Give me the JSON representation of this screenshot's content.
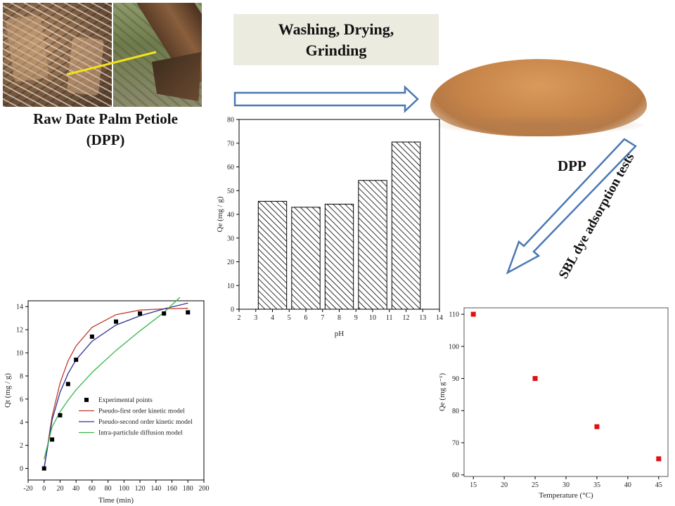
{
  "caption": {
    "line1": "Raw Date Palm Petiole",
    "line2": "(DPP)"
  },
  "process": {
    "line1": "Washing, Drying,",
    "line2": "Grinding"
  },
  "labels": {
    "dpp": "DPP",
    "dye_tests": "SBL dye  adsorption  tests"
  },
  "colors": {
    "arrow_outline": "#4a78b4",
    "powder": "#c8864a",
    "scatter_marker": "#dd1111",
    "pfo_line": "#c0392b",
    "pso_line": "#2e3192",
    "ipd_line": "#39b54a"
  },
  "chart_data": [
    {
      "type": "bar",
      "xlabel": "pH",
      "ylabel": "Qe (mg / g)",
      "xlim": [
        2,
        14
      ],
      "ylim": [
        0,
        80
      ],
      "xticks": [
        2,
        3,
        4,
        5,
        6,
        7,
        8,
        9,
        10,
        11,
        12,
        13,
        14
      ],
      "yticks": [
        0,
        10,
        20,
        30,
        40,
        50,
        60,
        70,
        80
      ],
      "x": [
        4,
        6,
        8,
        10,
        12
      ],
      "values": [
        45.5,
        43,
        44.3,
        54.3,
        70.5
      ],
      "bar_pattern": "diagonal-hatch"
    },
    {
      "type": "scatter",
      "xlabel": "Time (min)",
      "ylabel": "Qt (mg / g)",
      "xlim": [
        -20,
        200
      ],
      "ylim": [
        -1,
        14.5
      ],
      "xticks": [
        -20,
        0,
        20,
        40,
        60,
        80,
        100,
        120,
        140,
        160,
        180,
        200
      ],
      "yticks": [
        0,
        2,
        4,
        6,
        8,
        10,
        12,
        14
      ],
      "legend": "center-right",
      "series": [
        {
          "name": "Experimental points",
          "kind": "points",
          "x": [
            0,
            10,
            20,
            30,
            40,
            60,
            90,
            120,
            150,
            180
          ],
          "y": [
            0,
            2.5,
            4.6,
            7.3,
            9.4,
            11.4,
            12.7,
            13.4,
            13.4,
            13.5
          ]
        },
        {
          "name": "Pseudo-first order kinetic model",
          "kind": "line",
          "x": [
            0,
            10,
            20,
            30,
            40,
            60,
            90,
            120,
            150,
            180
          ],
          "y": [
            0,
            4.5,
            7.4,
            9.3,
            10.6,
            12.2,
            13.3,
            13.7,
            13.8,
            13.85
          ]
        },
        {
          "name": "Pseudo-second order kinetic model",
          "kind": "line",
          "x": [
            0,
            10,
            20,
            30,
            40,
            60,
            90,
            120,
            150,
            180
          ],
          "y": [
            0,
            4.2,
            6.6,
            8.2,
            9.4,
            11.0,
            12.4,
            13.2,
            13.8,
            14.3
          ]
        },
        {
          "name": "Intra-particlule diffusion model",
          "kind": "line",
          "x": [
            0,
            10,
            20,
            30,
            40,
            60,
            90,
            120,
            150,
            170
          ],
          "y": [
            0.8,
            3.6,
            4.9,
            5.9,
            6.8,
            8.3,
            10.2,
            11.9,
            13.5,
            14.8
          ]
        }
      ]
    },
    {
      "type": "scatter",
      "xlabel": "Temperature (°C)",
      "ylabel": "Qe (mg g⁻¹)",
      "xlim": [
        15,
        45
      ],
      "ylim": [
        60,
        110
      ],
      "xticks": [
        15,
        20,
        25,
        30,
        35,
        40,
        45
      ],
      "yticks": [
        60,
        70,
        80,
        90,
        100,
        110
      ],
      "series": [
        {
          "x": [
            15,
            25,
            35,
            45
          ],
          "y": [
            110,
            90,
            75,
            65
          ]
        }
      ]
    }
  ]
}
